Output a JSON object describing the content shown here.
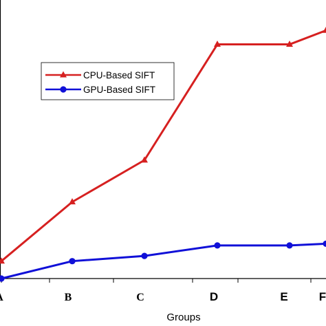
{
  "chart_data": {
    "type": "line",
    "categories": [
      "A",
      "B",
      "C",
      "D",
      "E",
      "F"
    ],
    "series": [
      {
        "name": "CPU-Based SIFT",
        "color": "#d62020",
        "marker": "triangle",
        "values": [
          1.0,
          7.8,
          12.6,
          25.9,
          25.9,
          27.5
        ]
      },
      {
        "name": "GPU-Based SIFT",
        "color": "#1010d8",
        "marker": "circle",
        "values": [
          -1.0,
          1.0,
          1.6,
          2.8,
          2.8,
          3.0
        ]
      }
    ],
    "title": "",
    "xlabel": "Groups",
    "ylabel": "",
    "ylim": [
      -1.0,
      31.0
    ],
    "legend_position": "upper-left",
    "grid": false
  }
}
